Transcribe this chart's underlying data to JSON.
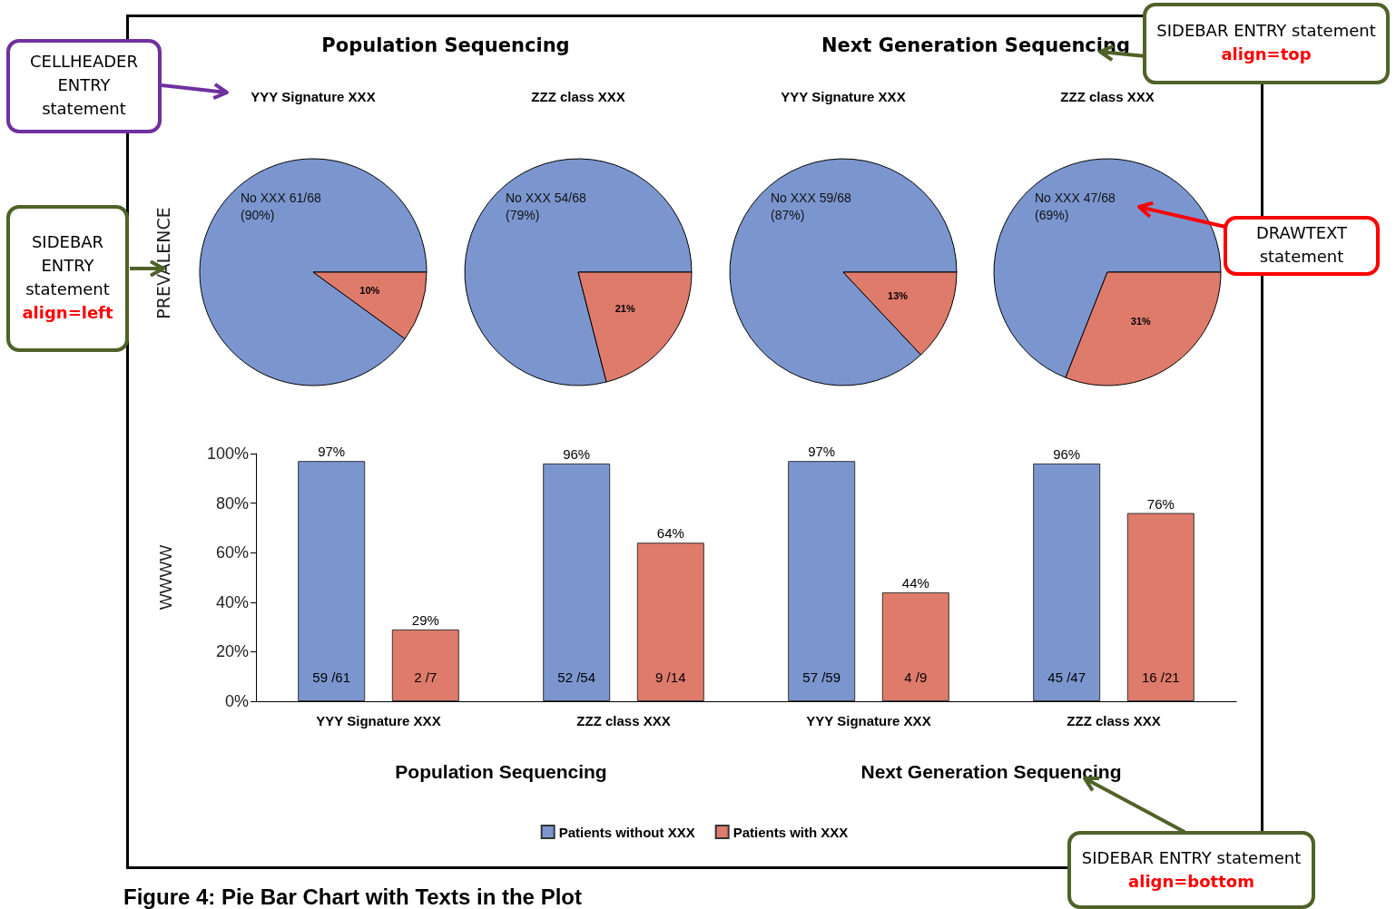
{
  "chart_data": [
    {
      "type": "pie",
      "title": "Population Sequencing",
      "subtitle": "YYY Signature XXX",
      "ylabel": "PREVALENCE",
      "categories": [
        null,
        null
      ],
      "values": [
        90,
        10
      ],
      "colors": [
        "#7b96cf",
        "#df7b6b"
      ],
      "value_labels": [
        "No XXX 61/68\n(90%)",
        "10%"
      ]
    },
    {
      "type": "pie",
      "subtitle": "ZZZ class XXX",
      "categories": [
        null,
        null
      ],
      "values": [
        79,
        21
      ],
      "colors": [
        "#7b96cf",
        "#df7b6b"
      ],
      "value_labels": [
        "No XXX 54/68\n(79%)",
        "21%"
      ]
    },
    {
      "type": "pie",
      "title": "Next Generation Sequencing",
      "subtitle": "YYY Signature XXX",
      "categories": [
        null,
        null
      ],
      "values": [
        87,
        13
      ],
      "colors": [
        "#7b96cf",
        "#df7b6b"
      ],
      "value_labels": [
        "No XXX 59/68\n(87%)",
        "13%"
      ]
    },
    {
      "type": "pie",
      "subtitle": "ZZZ class XXX",
      "categories": [
        null,
        null
      ],
      "values": [
        69,
        31
      ],
      "colors": [
        "#7b96cf",
        "#df7b6b"
      ],
      "value_labels": [
        "No XXX 47/68\n(69%)",
        "31%"
      ]
    },
    {
      "type": "bar",
      "ylabel": "WWWW",
      "categories": [
        "YYY Signature XXX",
        "ZZZ class XXX",
        "YYY Signature XXX",
        "ZZZ class XXX"
      ],
      "series": [
        {
          "name": "Patients without XXX",
          "color": "#7b96cf",
          "values": [
            97,
            96,
            97,
            96
          ],
          "value_labels": [
            "97%",
            "96%",
            "97%",
            "96%"
          ]
        },
        {
          "name": "Patients with XXX",
          "color": "#df7b6b",
          "values": [
            29,
            64,
            44,
            76
          ],
          "value_labels": [
            "29%",
            "64%",
            "44%",
            "76%"
          ]
        }
      ],
      "ylim": [
        0,
        100
      ],
      "yticks": [
        {
          "value": 0,
          "label": "0%"
        },
        {
          "value": 20,
          "label": "20%"
        },
        {
          "value": 40,
          "label": "40%"
        },
        {
          "value": 60,
          "label": "60%"
        },
        {
          "value": 80,
          "label": "80%"
        },
        {
          "value": 100,
          "label": "100%"
        }
      ],
      "legend": "bottom",
      "grid": false,
      "annotations": [
        "Population Sequencing",
        "Next Generation Sequencing",
        "59 /61",
        "2 /7",
        "52 /54",
        "9 /14",
        "57 /59",
        "4 /9",
        "45 /47",
        "16 /21"
      ]
    },
    {
      "type": "other",
      "title": "Figure 4: Pie Bar Chart with Texts in the Plot",
      "annotations": [
        "CELLHEADER\nENTRY\nstatement",
        "SIDEBAR ENTRY statement",
        "align=top",
        "SIDEBAR\nENTRY\nstatement",
        "align=left",
        "DRAWTEXT\nstatement",
        "SIDEBAR ENTRY statement",
        "align=bottom"
      ]
    }
  ]
}
